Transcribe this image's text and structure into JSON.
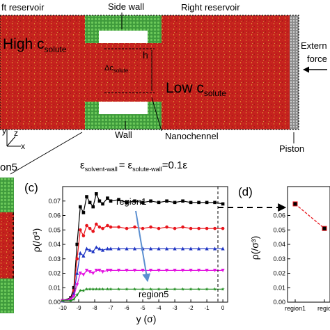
{
  "sim": {
    "left_reservoir": "ft reservoir",
    "side_wall": "Side wall",
    "right_reservoir": "Right reservoir",
    "high_c": "High c",
    "c_sub": "solute",
    "low_c": "Low c",
    "delta_c": "Δ",
    "h_label": "h",
    "external_force_l1": "Extern",
    "external_force_l2": "force",
    "wall": "Wall",
    "nanochannel": "Nanochennel",
    "piston": "Piston",
    "axis_y": "y",
    "axis_z": "z",
    "axis_x": "x",
    "region5_cut": "on5",
    "colors": {
      "fluid": "#c4211d",
      "wall": "#3f9b3c",
      "piston": "#9a9a9a"
    }
  },
  "equation": {
    "eps": "ε",
    "sub1": "solvent-wall",
    "eq1": "=",
    "sub2": "solute-wall",
    "eq2": "=0.1ε"
  },
  "chart_data": [
    {
      "panel": "(c)",
      "type": "line",
      "xlabel": "y (σ)",
      "ylabel": "ρ(/σ³)",
      "xlim": [
        -10,
        0.3
      ],
      "ylim": [
        0,
        0.08
      ],
      "xticks": [
        "-10",
        "-9",
        "-8",
        "-7",
        "-6",
        "-5",
        "-4",
        "-3",
        "-2",
        "-1",
        "0"
      ],
      "yticks": [
        "0.00",
        "0.01",
        "0.02",
        "0.03",
        "0.04",
        "0.05",
        "0.06",
        "0.07"
      ],
      "grid": false,
      "annotations": [
        "region1",
        "region5"
      ],
      "x": [
        -10,
        -9.5,
        -9.3,
        -9.1,
        -8.9,
        -8.7,
        -8.5,
        -8.3,
        -8.1,
        -7.9,
        -7.7,
        -7.5,
        -7.2,
        -7,
        -6.5,
        -6,
        -5.5,
        -5,
        -4.5,
        -4,
        -3.5,
        -3,
        -2.5,
        -2,
        -1.5,
        -1,
        -0.5,
        0
      ],
      "series": [
        {
          "color": "#000000",
          "marker": "square",
          "values": [
            0.001,
            0.003,
            0.01,
            0.04,
            0.066,
            0.062,
            0.073,
            0.069,
            0.066,
            0.075,
            0.07,
            0.068,
            0.072,
            0.07,
            0.071,
            0.069,
            0.07,
            0.069,
            0.07,
            0.069,
            0.07,
            0.069,
            0.07,
            0.069,
            0.069,
            0.069,
            0.069,
            0.068
          ]
        },
        {
          "color": "#e8141b",
          "marker": "circle",
          "values": [
            0.001,
            0.002,
            0.008,
            0.03,
            0.05,
            0.046,
            0.053,
            0.051,
            0.049,
            0.054,
            0.052,
            0.051,
            0.053,
            0.052,
            0.052,
            0.051,
            0.052,
            0.051,
            0.052,
            0.051,
            0.052,
            0.051,
            0.052,
            0.051,
            0.051,
            0.051,
            0.051,
            0.051
          ]
        },
        {
          "color": "#1f35c4",
          "marker": "triangle-up",
          "values": [
            0.001,
            0.002,
            0.006,
            0.02,
            0.034,
            0.032,
            0.037,
            0.036,
            0.035,
            0.038,
            0.037,
            0.036,
            0.037,
            0.037,
            0.037,
            0.037,
            0.037,
            0.037,
            0.037,
            0.037,
            0.037,
            0.037,
            0.037,
            0.037,
            0.037,
            0.037,
            0.037,
            0.037
          ]
        },
        {
          "color": "#e313e0",
          "marker": "triangle-down",
          "values": [
            0.001,
            0.002,
            0.004,
            0.012,
            0.02,
            0.019,
            0.022,
            0.021,
            0.02,
            0.022,
            0.022,
            0.021,
            0.022,
            0.022,
            0.022,
            0.022,
            0.022,
            0.022,
            0.022,
            0.022,
            0.022,
            0.022,
            0.022,
            0.022,
            0.022,
            0.022,
            0.022,
            0.022
          ]
        },
        {
          "color": "#1a8a1a",
          "marker": "star",
          "values": [
            0.001,
            0.001,
            0.002,
            0.005,
            0.008,
            0.008,
            0.009,
            0.009,
            0.009,
            0.009,
            0.009,
            0.009,
            0.009,
            0.009,
            0.009,
            0.009,
            0.009,
            0.009,
            0.009,
            0.009,
            0.009,
            0.009,
            0.009,
            0.009,
            0.009,
            0.009,
            0.009,
            0.009
          ]
        }
      ]
    },
    {
      "panel": "(d)",
      "type": "line",
      "ylabel": "ρ(/σ³)",
      "ylim": [
        0,
        0.08
      ],
      "yticks": [
        "0.00",
        "0.01",
        "0.02",
        "0.03",
        "0.04",
        "0.05",
        "0.06"
      ],
      "categories": [
        "region1",
        "regio"
      ],
      "values": [
        0.068,
        0.051
      ],
      "colors": {
        "line": "#e8141b",
        "marker": "#000000"
      }
    }
  ]
}
